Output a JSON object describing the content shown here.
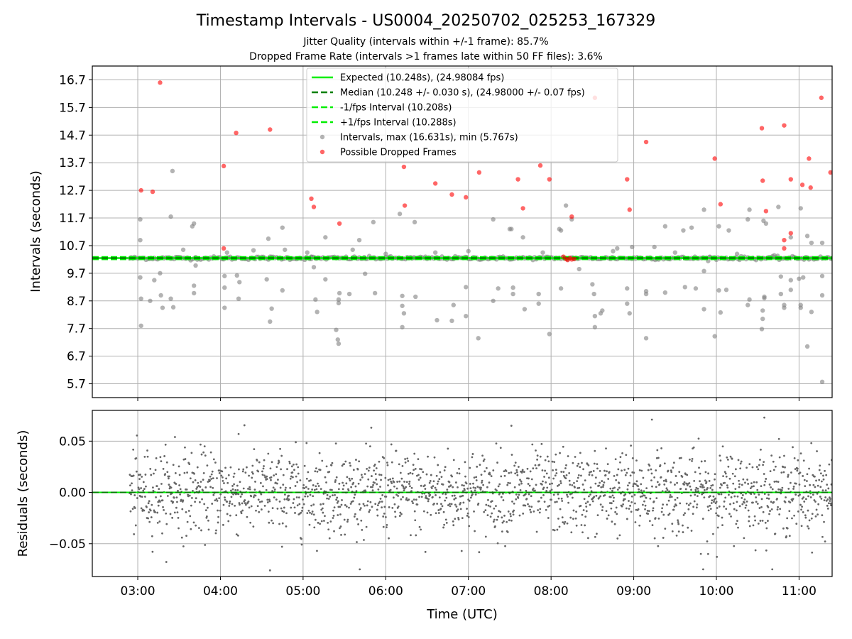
{
  "figure": {
    "title": "Timestamp Intervals - US0004_20250702_025253_167329",
    "subtitle_1": "Jitter Quality (intervals within +/-1 frame): 85.7%",
    "subtitle_2": "Dropped Frame Rate (intervals >1 frames late within 50 FF files): 3.6%"
  },
  "colors": {
    "expected": "#00ee00",
    "median": "#008000",
    "intervals": "#808080",
    "dropped": "#ff0000",
    "grid": "#b0b0b0"
  },
  "chart_data": [
    {
      "type": "scatter",
      "ylabel": "Intervals (seconds)",
      "xlabel": "",
      "x_unit": "hours UTC",
      "xlim": [
        2.45,
        11.4
      ],
      "ylim": [
        5.2,
        17.2
      ],
      "grid": true,
      "legend_position": "upper center",
      "x_ticks": [
        "03:00",
        "04:00",
        "05:00",
        "06:00",
        "07:00",
        "08:00",
        "09:00",
        "10:00",
        "11:00"
      ],
      "y_ticks": [
        "16.7",
        "15.7",
        "14.7",
        "13.7",
        "12.7",
        "11.7",
        "10.7",
        "9.7",
        "8.7",
        "7.7",
        "6.7",
        "5.7"
      ],
      "legend": {
        "expected": "Expected (10.248s), (24.98084 fps)",
        "median": "Median (10.248 +/- 0.030 s), (24.98000 +/- 0.07 fps)",
        "minus": "-1/fps Interval (10.208s)",
        "plus": "+1/fps Interval (10.288s)",
        "intervals": "Intervals, max (16.631s), min (5.767s)",
        "dropped": "Possible Dropped Frames"
      },
      "lines": {
        "expected": 10.248,
        "median": 10.248,
        "minus_interval": 10.208,
        "plus_interval": 10.288
      },
      "main_band": {
        "x_start": 2.9,
        "x_end": 11.4,
        "y_center": 10.248
      },
      "intervals": [
        [
          3.03,
          11.65
        ],
        [
          3.03,
          10.9
        ],
        [
          3.03,
          9.55
        ],
        [
          3.04,
          8.78
        ],
        [
          3.04,
          7.8
        ],
        [
          3.15,
          8.7
        ],
        [
          3.2,
          9.45
        ],
        [
          3.27,
          9.7
        ],
        [
          3.28,
          8.9
        ],
        [
          3.3,
          8.45
        ],
        [
          3.4,
          11.75
        ],
        [
          3.4,
          8.78
        ],
        [
          3.42,
          13.4
        ],
        [
          3.43,
          8.47
        ],
        [
          3.55,
          10.55
        ],
        [
          3.66,
          11.4
        ],
        [
          3.68,
          11.5
        ],
        [
          3.68,
          9.25
        ],
        [
          3.68,
          8.98
        ],
        [
          3.7,
          9.98
        ],
        [
          4.05,
          9.6
        ],
        [
          4.05,
          9.18
        ],
        [
          4.05,
          8.45
        ],
        [
          4.08,
          10.45
        ],
        [
          4.2,
          9.62
        ],
        [
          4.22,
          8.78
        ],
        [
          4.23,
          9.38
        ],
        [
          4.4,
          10.53
        ],
        [
          4.56,
          9.48
        ],
        [
          4.58,
          10.95
        ],
        [
          4.6,
          10.3
        ],
        [
          4.62,
          8.42
        ],
        [
          4.6,
          7.95
        ],
        [
          4.75,
          11.35
        ],
        [
          4.75,
          9.08
        ],
        [
          4.78,
          10.55
        ],
        [
          5.1,
          10.3
        ],
        [
          5.1,
          10.22
        ],
        [
          5.13,
          9.92
        ],
        [
          5.15,
          8.75
        ],
        [
          5.17,
          8.3
        ],
        [
          5.27,
          11.0
        ],
        [
          5.27,
          9.48
        ],
        [
          5.4,
          7.65
        ],
        [
          5.42,
          7.3
        ],
        [
          5.43,
          7.15
        ],
        [
          5.43,
          8.62
        ],
        [
          5.43,
          8.75
        ],
        [
          5.44,
          8.98
        ],
        [
          5.56,
          8.95
        ],
        [
          5.6,
          10.55
        ],
        [
          5.68,
          10.9
        ],
        [
          5.75,
          9.68
        ],
        [
          5.85,
          11.55
        ],
        [
          5.87,
          8.98
        ],
        [
          6.17,
          11.85
        ],
        [
          6.2,
          8.88
        ],
        [
          6.2,
          8.52
        ],
        [
          6.22,
          8.25
        ],
        [
          6.2,
          7.75
        ],
        [
          6.35,
          11.55
        ],
        [
          6.35,
          10.25
        ],
        [
          6.36,
          8.85
        ],
        [
          6.6,
          10.45
        ],
        [
          6.62,
          8.0
        ],
        [
          6.8,
          7.98
        ],
        [
          6.82,
          8.55
        ],
        [
          6.97,
          8.15
        ],
        [
          6.97,
          9.2
        ],
        [
          7.12,
          7.35
        ],
        [
          7.3,
          11.65
        ],
        [
          7.3,
          8.7
        ],
        [
          7.36,
          9.15
        ],
        [
          7.5,
          11.3
        ],
        [
          7.52,
          11.3
        ],
        [
          7.54,
          9.18
        ],
        [
          7.54,
          8.95
        ],
        [
          7.66,
          11.0
        ],
        [
          7.68,
          8.4
        ],
        [
          7.85,
          8.6
        ],
        [
          7.85,
          8.95
        ],
        [
          7.98,
          7.5
        ],
        [
          8.1,
          11.3
        ],
        [
          8.12,
          11.25
        ],
        [
          8.12,
          9.15
        ],
        [
          8.18,
          12.15
        ],
        [
          8.25,
          11.65
        ],
        [
          8.34,
          9.85
        ],
        [
          8.5,
          9.3
        ],
        [
          8.52,
          8.95
        ],
        [
          8.53,
          8.15
        ],
        [
          8.53,
          7.75
        ],
        [
          8.6,
          8.25
        ],
        [
          8.62,
          8.35
        ],
        [
          8.75,
          10.5
        ],
        [
          8.92,
          9.15
        ],
        [
          8.92,
          8.6
        ],
        [
          8.95,
          8.25
        ],
        [
          8.98,
          10.65
        ],
        [
          9.15,
          7.35
        ],
        [
          9.15,
          8.95
        ],
        [
          9.15,
          9.05
        ],
        [
          9.25,
          10.65
        ],
        [
          9.38,
          9.0
        ],
        [
          9.38,
          11.4
        ],
        [
          9.6,
          11.25
        ],
        [
          9.62,
          9.2
        ],
        [
          9.7,
          11.35
        ],
        [
          9.75,
          9.15
        ],
        [
          9.85,
          12.0
        ],
        [
          9.85,
          8.4
        ],
        [
          9.85,
          9.78
        ],
        [
          9.92,
          10.3
        ],
        [
          9.98,
          7.42
        ],
        [
          10.03,
          11.4
        ],
        [
          10.03,
          9.08
        ],
        [
          10.05,
          8.28
        ],
        [
          10.12,
          9.1
        ],
        [
          10.15,
          11.25
        ],
        [
          10.38,
          11.65
        ],
        [
          10.38,
          8.55
        ],
        [
          10.4,
          8.75
        ],
        [
          10.4,
          12.0
        ],
        [
          10.55,
          7.68
        ],
        [
          10.56,
          8.35
        ],
        [
          10.56,
          8.05
        ],
        [
          10.58,
          8.85
        ],
        [
          10.58,
          8.8
        ],
        [
          10.57,
          11.6
        ],
        [
          10.6,
          11.5
        ],
        [
          10.75,
          12.1
        ],
        [
          10.78,
          9.58
        ],
        [
          10.78,
          8.95
        ],
        [
          10.82,
          8.45
        ],
        [
          10.82,
          8.55
        ],
        [
          10.9,
          9.45
        ],
        [
          10.9,
          11.0
        ],
        [
          10.9,
          9.1
        ],
        [
          11.0,
          9.5
        ],
        [
          11.02,
          8.55
        ],
        [
          11.02,
          8.45
        ],
        [
          11.02,
          12.05
        ],
        [
          11.05,
          9.55
        ],
        [
          11.1,
          11.05
        ],
        [
          11.1,
          7.05
        ],
        [
          11.15,
          8.3
        ],
        [
          11.15,
          10.8
        ],
        [
          11.28,
          10.8
        ],
        [
          11.28,
          8.9
        ],
        [
          11.28,
          5.77
        ],
        [
          11.28,
          9.6
        ],
        [
          4.1,
          10.25
        ],
        [
          5.05,
          10.45
        ],
        [
          6.0,
          10.4
        ],
        [
          7.0,
          10.5
        ],
        [
          7.9,
          10.45
        ],
        [
          8.8,
          10.6
        ],
        [
          9.5,
          10.45
        ],
        [
          10.25,
          10.4
        ],
        [
          10.7,
          10.35
        ]
      ],
      "dropped": [
        [
          3.04,
          12.7
        ],
        [
          3.18,
          12.65
        ],
        [
          3.27,
          16.6
        ],
        [
          4.04,
          13.58
        ],
        [
          4.04,
          10.6
        ],
        [
          4.19,
          14.78
        ],
        [
          4.6,
          14.9
        ],
        [
          5.1,
          12.4
        ],
        [
          5.13,
          12.1
        ],
        [
          5.44,
          11.5
        ],
        [
          6.22,
          13.55
        ],
        [
          6.23,
          12.15
        ],
        [
          6.6,
          12.95
        ],
        [
          6.8,
          12.55
        ],
        [
          6.97,
          12.45
        ],
        [
          7.13,
          13.35
        ],
        [
          7.6,
          13.1
        ],
        [
          7.66,
          12.05
        ],
        [
          7.87,
          13.6
        ],
        [
          7.98,
          13.1
        ],
        [
          8.25,
          11.75
        ],
        [
          8.53,
          16.05
        ],
        [
          8.92,
          13.1
        ],
        [
          8.95,
          12.0
        ],
        [
          9.15,
          14.45
        ],
        [
          9.98,
          13.85
        ],
        [
          10.05,
          12.2
        ],
        [
          10.55,
          14.95
        ],
        [
          10.56,
          13.05
        ],
        [
          10.6,
          11.95
        ],
        [
          10.82,
          15.05
        ],
        [
          10.82,
          10.9
        ],
        [
          10.82,
          10.6
        ],
        [
          10.9,
          11.15
        ],
        [
          10.9,
          13.1
        ],
        [
          11.04,
          12.9
        ],
        [
          11.12,
          13.85
        ],
        [
          11.14,
          12.8
        ],
        [
          11.27,
          16.05
        ],
        [
          11.38,
          13.35
        ],
        [
          8.15,
          10.3
        ],
        [
          8.18,
          10.22
        ],
        [
          8.2,
          10.18
        ],
        [
          8.23,
          10.25
        ],
        [
          8.25,
          10.2
        ],
        [
          8.28,
          10.22
        ]
      ]
    },
    {
      "type": "scatter",
      "xlabel": "Time (UTC)",
      "ylabel": "Residuals (seconds)",
      "xlim": [
        2.45,
        11.4
      ],
      "ylim": [
        -0.082,
        0.08
      ],
      "grid": true,
      "x_ticks": [
        "03:00",
        "04:00",
        "05:00",
        "06:00",
        "07:00",
        "08:00",
        "09:00",
        "10:00",
        "11:00"
      ],
      "y_ticks": [
        "0.05",
        "0.00",
        "−0.05"
      ],
      "zero_line": 0.0,
      "residuals": {
        "x_start": 2.9,
        "x_end": 11.4,
        "sigma": 0.02,
        "outliers": [
          [
            7.52,
            0.065
          ],
          [
            9.22,
            0.071
          ],
          [
            10.58,
            0.073
          ],
          [
            9.84,
            -0.075
          ],
          [
            4.6,
            -0.076
          ],
          [
            3.45,
            0.054
          ],
          [
            4.22,
            0.057
          ],
          [
            6.48,
            -0.058
          ],
          [
            9.9,
            -0.06
          ]
        ]
      }
    }
  ]
}
